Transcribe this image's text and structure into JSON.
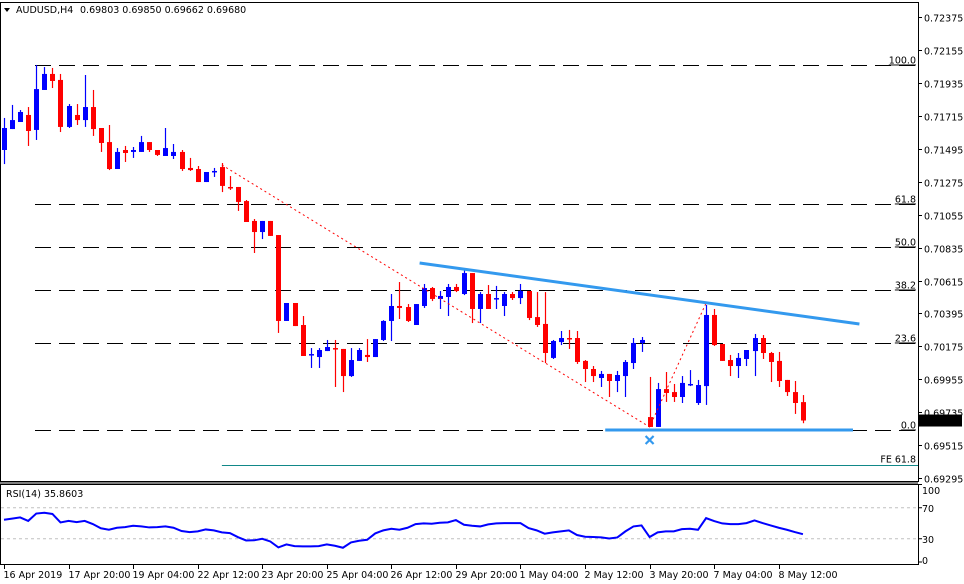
{
  "header": {
    "symbol": "AUDUSD,H4",
    "ohlc_text": "0.69803 0.69850 0.69662 0.69680"
  },
  "colors": {
    "bull": "#0000ff",
    "bear": "#ff0000",
    "trendline": "#3399ee",
    "fe": "#118888",
    "rsi": "#0000ff"
  },
  "chart_data": [
    {
      "type": "candlestick",
      "title": "AUDUSD,H4",
      "ylim": [
        0.69266,
        0.72489
      ],
      "y_ticks": [
        "0.72375",
        "0.72155",
        "0.71935",
        "0.71715",
        "0.71495",
        "0.71275",
        "0.71055",
        "0.70835",
        "0.70615",
        "0.70395",
        "0.70175",
        "0.69955",
        "0.69735",
        "0.69515",
        "0.69295"
      ],
      "current_price": "0.69680",
      "x_labels": [
        {
          "i": 0,
          "text": "16 Apr 2019"
        },
        {
          "i": 8,
          "text": "17 Apr 20:00"
        },
        {
          "i": 16,
          "text": "19 Apr 04:00"
        },
        {
          "i": 24,
          "text": "22 Apr 12:00"
        },
        {
          "i": 32,
          "text": "23 Apr 20:00"
        },
        {
          "i": 40,
          "text": "25 Apr 04:00"
        },
        {
          "i": 48,
          "text": "26 Apr 12:00"
        },
        {
          "i": 56,
          "text": "29 Apr 20:00"
        },
        {
          "i": 64,
          "text": "1 May 04:00"
        },
        {
          "i": 72,
          "text": "2 May 12:00"
        },
        {
          "i": 80,
          "text": "3 May 20:00"
        },
        {
          "i": 88,
          "text": "7 May 04:00"
        },
        {
          "i": 96,
          "text": "8 May 12:00"
        }
      ],
      "ohlc": [
        [
          0.71487,
          0.71701,
          0.71393,
          0.71634
        ],
        [
          0.71627,
          0.71788,
          0.71627,
          0.71687
        ],
        [
          0.71674,
          0.71754,
          0.71674,
          0.71741
        ],
        [
          0.71721,
          0.71774,
          0.71514,
          0.71614
        ],
        [
          0.71621,
          0.72055,
          0.71554,
          0.71894
        ],
        [
          0.71888,
          0.72041,
          0.71888,
          0.71995
        ],
        [
          0.71995,
          0.72035,
          0.71901,
          0.71948
        ],
        [
          0.71955,
          0.71995,
          0.71607,
          0.71641
        ],
        [
          0.71641,
          0.71794,
          0.71634,
          0.71781
        ],
        [
          0.71721,
          0.71794,
          0.71654,
          0.71687
        ],
        [
          0.71687,
          0.71988,
          0.71641,
          0.71774
        ],
        [
          0.71774,
          0.71888,
          0.71581,
          0.71627
        ],
        [
          0.71634,
          0.71634,
          0.71474,
          0.71534
        ],
        [
          0.7154,
          0.71654,
          0.71353,
          0.7136
        ],
        [
          0.7136,
          0.715,
          0.7136,
          0.71474
        ],
        [
          0.71487,
          0.71514,
          0.71407,
          0.71467
        ],
        [
          0.71474,
          0.71507,
          0.71434,
          0.71487
        ],
        [
          0.71474,
          0.71581,
          0.71474,
          0.7154
        ],
        [
          0.7154,
          0.7154,
          0.71474,
          0.71487
        ],
        [
          0.71487,
          0.71487,
          0.71447,
          0.71454
        ],
        [
          0.71447,
          0.71634,
          0.71447,
          0.715
        ],
        [
          0.71447,
          0.71527,
          0.71427,
          0.71474
        ],
        [
          0.71474,
          0.71487,
          0.71347,
          0.7136
        ],
        [
          0.71367,
          0.71434,
          0.71347,
          0.71353
        ],
        [
          0.7136,
          0.7138,
          0.71273,
          0.71273
        ],
        [
          0.71273,
          0.71313,
          0.71273,
          0.7134
        ],
        [
          0.7134,
          0.71367,
          0.71307,
          0.71347
        ],
        [
          0.71373,
          0.714,
          0.71206,
          0.71247
        ],
        [
          0.7124,
          0.71313,
          0.7122,
          0.71233
        ],
        [
          0.7124,
          0.7124,
          0.7108,
          0.7114
        ],
        [
          0.71146,
          0.71153,
          0.71006,
          0.71006
        ],
        [
          0.71013,
          0.71026,
          0.70799,
          0.70939
        ],
        [
          0.70939,
          0.71013,
          0.70892,
          0.71013
        ],
        [
          0.71013,
          0.71013,
          0.70913,
          0.70913
        ],
        [
          0.70919,
          0.70919,
          0.70265,
          0.70345
        ],
        [
          0.70345,
          0.70465,
          0.70345,
          0.70465
        ],
        [
          0.70465,
          0.70465,
          0.70311,
          0.70311
        ],
        [
          0.70318,
          0.70378,
          0.70111,
          0.70111
        ],
        [
          0.70118,
          0.70164,
          0.70031,
          0.70124
        ],
        [
          0.70104,
          0.70164,
          0.70031,
          0.70151
        ],
        [
          0.70144,
          0.70218,
          0.70144,
          0.70171
        ],
        [
          0.70164,
          0.70218,
          0.69904,
          0.70158
        ],
        [
          0.70158,
          0.70158,
          0.6987,
          0.69977
        ],
        [
          0.69977,
          0.70164,
          0.69971,
          0.70084
        ],
        [
          0.70078,
          0.70164,
          0.70078,
          0.70151
        ],
        [
          0.70118,
          0.70224,
          0.70071,
          0.70104
        ],
        [
          0.70104,
          0.70224,
          0.70104,
          0.70224
        ],
        [
          0.70218,
          0.7035,
          0.70211,
          0.70345
        ],
        [
          0.70345,
          0.70525,
          0.70211,
          0.70445
        ],
        [
          0.70445,
          0.70605,
          0.70358,
          0.70432
        ],
        [
          0.70438,
          0.70458,
          0.70338,
          0.70345
        ],
        [
          0.70318,
          0.70458,
          0.70318,
          0.70458
        ],
        [
          0.70445,
          0.70592,
          0.70432,
          0.70565
        ],
        [
          0.70565,
          0.70572,
          0.70478,
          0.70492
        ],
        [
          0.70492,
          0.70545,
          0.70425,
          0.70512
        ],
        [
          0.70505,
          0.70592,
          0.70378,
          0.70572
        ],
        [
          0.70572,
          0.70592,
          0.70538,
          0.70545
        ],
        [
          0.70525,
          0.70685,
          0.70518,
          0.70665
        ],
        [
          0.70665,
          0.70665,
          0.70331,
          0.70425
        ],
        [
          0.70425,
          0.70538,
          0.70331,
          0.70525
        ],
        [
          0.70525,
          0.70585,
          0.70425,
          0.70425
        ],
        [
          0.70492,
          0.70579,
          0.70425,
          0.70498
        ],
        [
          0.70445,
          0.70538,
          0.70378,
          0.70525
        ],
        [
          0.70525,
          0.70538,
          0.70485,
          0.70498
        ],
        [
          0.70498,
          0.70592,
          0.70458,
          0.70545
        ],
        [
          0.70545,
          0.70545,
          0.70351,
          0.70365
        ],
        [
          0.70371,
          0.70538,
          0.70305,
          0.70318
        ],
        [
          0.70325,
          0.70538,
          0.70064,
          0.70131
        ],
        [
          0.70098,
          0.70218,
          0.70091,
          0.70211
        ],
        [
          0.70204,
          0.70278,
          0.70184,
          0.70231
        ],
        [
          0.70231,
          0.70285,
          0.70158,
          0.70224
        ],
        [
          0.70231,
          0.70278,
          0.70058,
          0.70071
        ],
        [
          0.70078,
          0.70084,
          0.69937,
          0.70024
        ],
        [
          0.70024,
          0.70044,
          0.69937,
          0.69977
        ],
        [
          0.69964,
          0.70011,
          0.69904,
          0.69991
        ],
        [
          0.69991,
          0.69991,
          0.69837,
          0.69944
        ],
        [
          0.69944,
          0.70011,
          0.6987,
          0.69984
        ],
        [
          0.69977,
          0.70084,
          0.69837,
          0.70071
        ],
        [
          0.70064,
          0.70231,
          0.70024,
          0.70198
        ],
        [
          0.70198,
          0.70238,
          0.70138,
          0.70218
        ],
        [
          0.69703,
          0.69971,
          0.69637,
          0.69637
        ],
        [
          0.69637,
          0.69931,
          0.69637,
          0.6989
        ],
        [
          0.6989,
          0.70004,
          0.69804,
          0.69864
        ],
        [
          0.6987,
          0.69924,
          0.69804,
          0.69837
        ],
        [
          0.69837,
          0.69977,
          0.69797,
          0.69931
        ],
        [
          0.69917,
          0.70017,
          0.6991,
          0.69924
        ],
        [
          0.69797,
          0.69951,
          0.69784,
          0.69917
        ],
        [
          0.6991,
          0.70452,
          0.69784,
          0.70385
        ],
        [
          0.70385,
          0.70425,
          0.70178,
          0.70184
        ],
        [
          0.70191,
          0.70191,
          0.70078,
          0.70078
        ],
        [
          0.70084,
          0.70118,
          0.69977,
          0.70044
        ],
        [
          0.70044,
          0.70131,
          0.69964,
          0.70098
        ],
        [
          0.70091,
          0.70151,
          0.70044,
          0.70151
        ],
        [
          0.70144,
          0.70258,
          0.69977,
          0.70231
        ],
        [
          0.70231,
          0.70251,
          0.70091,
          0.70131
        ],
        [
          0.70131,
          0.70138,
          0.69937,
          0.70071
        ],
        [
          0.70078,
          0.70138,
          0.69904,
          0.69944
        ],
        [
          0.69951,
          0.69951,
          0.69844,
          0.6987
        ],
        [
          0.6987,
          0.69944,
          0.69724,
          0.69797
        ],
        [
          0.69803,
          0.6985,
          0.69662,
          0.6968
        ]
      ],
      "fibonacci": [
        {
          "label": "100.0",
          "price": 0.72055
        },
        {
          "label": "61.8",
          "price": 0.71128
        },
        {
          "label": "50.0",
          "price": 0.7084
        },
        {
          "label": "38.2",
          "price": 0.70552
        },
        {
          "label": "23.6",
          "price": 0.70196
        },
        {
          "label": "0.0",
          "price": 0.69617
        }
      ],
      "fe_level": {
        "label": "FE 61.8",
        "price": 0.69383,
        "from_i": 27
      },
      "trendlines": {
        "zigzag": [
          {
            "i": 27,
            "price": 0.71387
          },
          {
            "i": 80,
            "price": 0.69637
          },
          {
            "i": 87,
            "price": 0.70465
          }
        ],
        "resistance": [
          {
            "i": 51.5,
            "price": 0.70732
          },
          {
            "i": 106,
            "price": 0.70325
          }
        ],
        "support": [
          {
            "i": 74.5,
            "price": 0.69617
          },
          {
            "i": 105.2,
            "price": 0.69617
          }
        ]
      },
      "marker": {
        "icon": "x-mark-icon",
        "i": 80,
        "price": 0.6955
      }
    },
    {
      "type": "line",
      "title": "RSI(14)",
      "value_text": "35.8603",
      "label": "RSI(14) 35.8603",
      "ylim": [
        0,
        100
      ],
      "y_ticks": [
        "100",
        "70",
        "30",
        "0"
      ],
      "levels": [
        70,
        30
      ],
      "values": [
        54.5,
        56,
        57.5,
        53,
        62.5,
        63.5,
        62,
        51,
        53,
        51.5,
        53,
        49,
        43.5,
        41.6,
        44.2,
        45,
        46.8,
        45.9,
        44.6,
        45,
        45.9,
        44.2,
        40,
        38.6,
        39.5,
        42,
        40.8,
        38.2,
        37.3,
        32,
        27.8,
        28,
        30,
        26.5,
        18.8,
        22.7,
        20.5,
        20.1,
        20.1,
        20.5,
        22.7,
        21,
        18.4,
        25.3,
        27.4,
        28.7,
        36.9,
        40.8,
        42.9,
        41.6,
        44.2,
        48.9,
        49.8,
        49.4,
        50.7,
        51.1,
        54.1,
        48.1,
        46.8,
        45.9,
        48.5,
        49.8,
        50.2,
        50.2,
        50.2,
        43.7,
        40.8,
        36.5,
        38.2,
        39.5,
        40.8,
        34.8,
        32.6,
        32.2,
        31.7,
        30.4,
        31.7,
        39.5,
        45.9,
        47.2,
        32.2,
        38.2,
        39.5,
        39.5,
        42.4,
        42.9,
        41.6,
        56.6,
        52.8,
        49.8,
        48.9,
        48.9,
        50.2,
        53.7,
        50.2,
        47.2,
        44.2,
        41.6,
        38.6,
        35.86
      ]
    }
  ]
}
